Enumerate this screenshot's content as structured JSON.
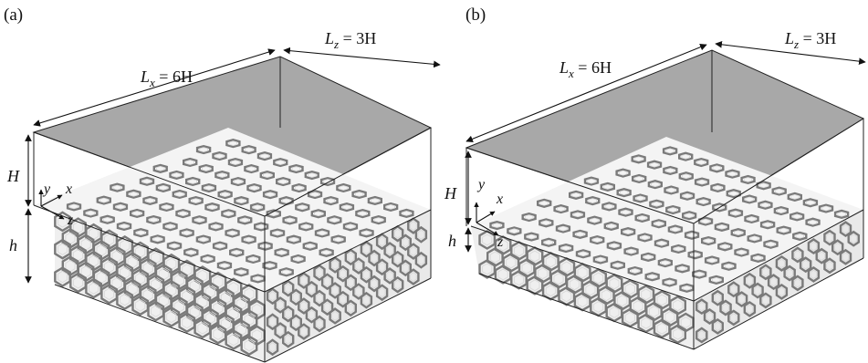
{
  "panels": [
    {
      "letter": "(a)",
      "lx_label": "L",
      "lx_sub": "x",
      "lx_eq": " = 6H",
      "lz_label": "L",
      "lz_sub": "z",
      "lz_eq": " = 3H",
      "H_label": "H",
      "h_label": "h",
      "axis_x": "x",
      "axis_y": "y",
      "axis_z": "z"
    },
    {
      "letter": "(b)",
      "lx_label": "L",
      "lx_sub": "x",
      "lx_eq": " = 6H",
      "lz_label": "L",
      "lz_sub": "z",
      "lz_eq": " = 3H",
      "H_label": "H",
      "h_label": "h",
      "axis_x": "x",
      "axis_y": "y",
      "axis_z": "z"
    }
  ],
  "colors": {
    "top_plate": "#a8a8a8",
    "lattice_stroke": "#7a7a7a",
    "lattice_highlight": "#d9d9d9"
  }
}
